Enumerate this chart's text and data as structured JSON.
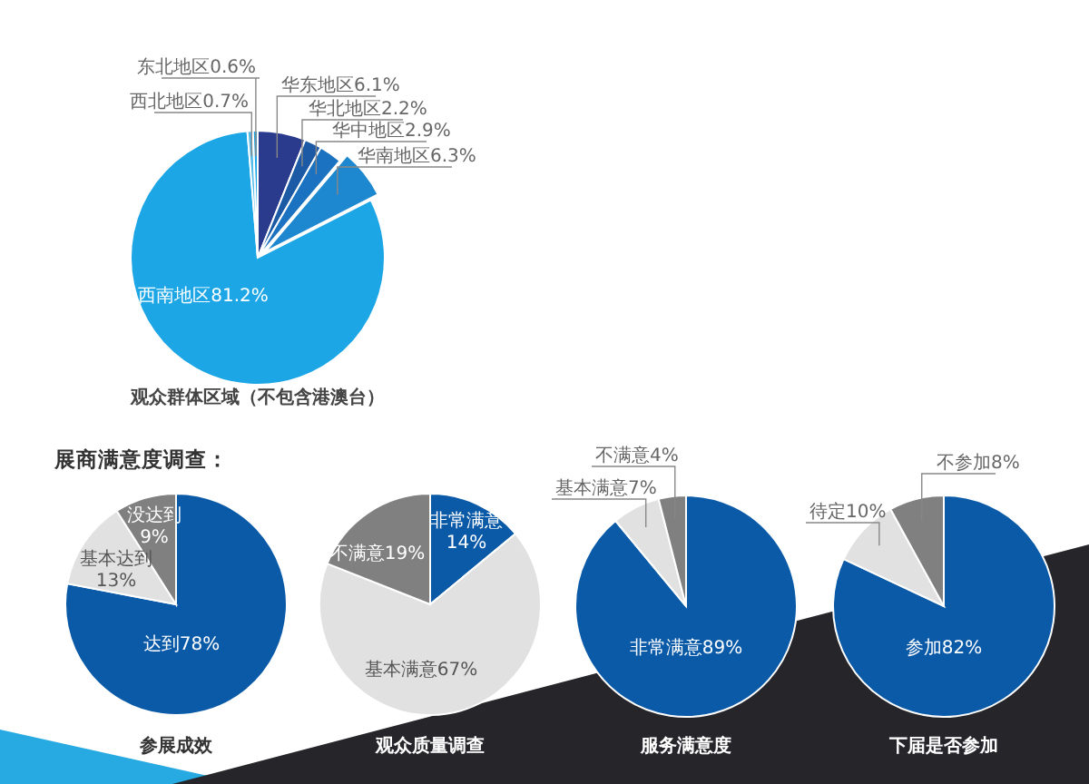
{
  "chart_data": [
    {
      "type": "pie",
      "title": "观众群体区域（不包含港澳台）",
      "categories": [
        "华东地区",
        "华北地区",
        "华中地区",
        "华南地区",
        "西南地区",
        "西北地区",
        "东北地区"
      ],
      "values": [
        6.1,
        2.2,
        2.9,
        6.3,
        81.2,
        0.7,
        0.6
      ],
      "value_labels": [
        "6.1%",
        "2.2%",
        "2.9%",
        "6.3%",
        "81.2%",
        "0.7%",
        "0.6%"
      ],
      "colors": [
        "#2a3a8c",
        "#1c5aa6",
        "#1a72c0",
        "#1d88cf",
        "#1ca6e6",
        "#55bce9",
        "#1ca6e6"
      ]
    },
    {
      "type": "pie",
      "title": "参展成效",
      "annotations": [
        "展商满意度调查："
      ],
      "categories": [
        "达到",
        "基本达到",
        "没达到"
      ],
      "values": [
        78,
        13,
        9
      ],
      "value_labels": [
        "78%",
        "13%",
        "9%"
      ],
      "colors": [
        "#0b5aa8",
        "#e1e1e1",
        "#808080"
      ]
    },
    {
      "type": "pie",
      "title": "观众质量调查",
      "categories": [
        "非常满意",
        "基本满意",
        "不满意"
      ],
      "values": [
        14,
        67,
        19
      ],
      "value_labels": [
        "14%",
        "67%",
        "19%"
      ],
      "colors": [
        "#0b5aa8",
        "#e1e1e1",
        "#808080"
      ]
    },
    {
      "type": "pie",
      "title": "服务满意度",
      "categories": [
        "非常满意",
        "基本满意",
        "不满意"
      ],
      "values": [
        89,
        7,
        4
      ],
      "value_labels": [
        "89%",
        "7%",
        "4%"
      ],
      "colors": [
        "#0b5aa8",
        "#e1e1e1",
        "#808080"
      ]
    },
    {
      "type": "pie",
      "title": "下届是否参加",
      "categories": [
        "参加",
        "待定",
        "不参加"
      ],
      "values": [
        82,
        10,
        8
      ],
      "value_labels": [
        "82%",
        "10%",
        "8%"
      ],
      "colors": [
        "#0b5aa8",
        "#e1e1e1",
        "#808080"
      ]
    }
  ]
}
